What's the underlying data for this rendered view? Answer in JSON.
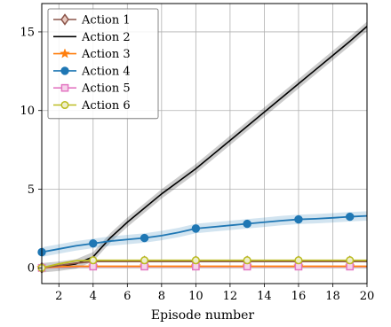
{
  "chart_data": {
    "type": "line",
    "xlabel": "Episode number",
    "ylabel": "",
    "xlim": [
      1,
      20
    ],
    "ylim": [
      -1.0,
      16.8
    ],
    "xticks": [
      2,
      4,
      6,
      8,
      10,
      12,
      14,
      16,
      18,
      20
    ],
    "yticks": [
      0,
      5,
      10,
      15
    ],
    "grid": true,
    "legend_position": "top-left",
    "x": [
      1,
      2,
      3,
      4,
      5,
      6,
      7,
      8,
      9,
      10,
      11,
      12,
      13,
      14,
      15,
      16,
      17,
      18,
      19,
      20
    ],
    "series": [
      {
        "name": "Action 1",
        "color": "#8c564b",
        "marker": "diamond",
        "values": [
          0.0,
          0.15,
          0.3,
          0.4,
          0.4,
          0.4,
          0.4,
          0.4,
          0.4,
          0.4,
          0.4,
          0.4,
          0.4,
          0.4,
          0.4,
          0.4,
          0.4,
          0.4,
          0.4,
          0.4
        ]
      },
      {
        "name": "Action 2",
        "color": "#000000",
        "marker": "none",
        "band": 0.3,
        "values": [
          0.0,
          0.1,
          0.25,
          0.7,
          1.9,
          2.9,
          3.8,
          4.7,
          5.5,
          6.3,
          7.2,
          8.1,
          9.0,
          9.9,
          10.8,
          11.7,
          12.6,
          13.5,
          14.4,
          15.35
        ]
      },
      {
        "name": "Action 3",
        "color": "#ff7f0e",
        "marker": "star",
        "values": [
          0.0,
          0.08,
          0.1,
          0.1,
          0.1,
          0.1,
          0.1,
          0.1,
          0.1,
          0.1,
          0.1,
          0.1,
          0.1,
          0.1,
          0.1,
          0.1,
          0.1,
          0.1,
          0.1,
          0.1
        ]
      },
      {
        "name": "Action 4",
        "color": "#1f77b4",
        "marker": "circle",
        "band": 0.3,
        "values": [
          1.0,
          1.2,
          1.4,
          1.55,
          1.7,
          1.8,
          1.9,
          2.05,
          2.25,
          2.5,
          2.6,
          2.7,
          2.8,
          2.9,
          3.0,
          3.08,
          3.12,
          3.18,
          3.25,
          3.3
        ]
      },
      {
        "name": "Action 5",
        "color": "#e377c2",
        "marker": "square",
        "values": [
          0.0,
          0.05,
          0.08,
          0.08,
          0.08,
          0.08,
          0.08,
          0.08,
          0.08,
          0.08,
          0.08,
          0.08,
          0.08,
          0.08,
          0.08,
          0.08,
          0.08,
          0.08,
          0.08,
          0.08
        ]
      },
      {
        "name": "Action 6",
        "color": "#bcbd22",
        "marker": "circle-open",
        "values": [
          0.0,
          0.25,
          0.45,
          0.48,
          0.48,
          0.48,
          0.48,
          0.48,
          0.48,
          0.48,
          0.48,
          0.48,
          0.48,
          0.48,
          0.48,
          0.48,
          0.48,
          0.48,
          0.48,
          0.48
        ]
      }
    ]
  }
}
